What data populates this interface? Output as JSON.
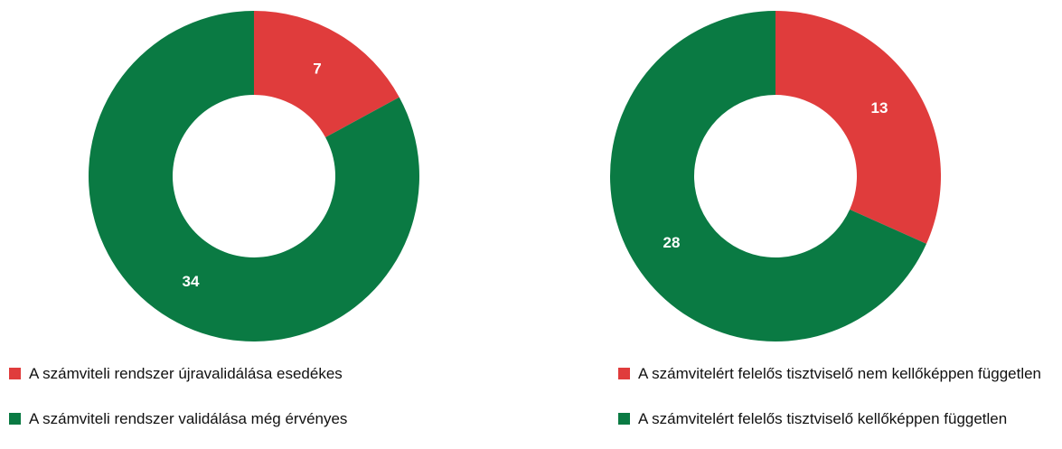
{
  "chart_data": [
    {
      "type": "donut",
      "categories": [
        "A számviteli rendszer újravalidálása esedékes",
        "A számviteli rendszer validálása még érvényes"
      ],
      "values": [
        7,
        34
      ],
      "colors": [
        "#e03c3c",
        "#0a7a43"
      ]
    },
    {
      "type": "donut",
      "categories": [
        "A számvitelért felelős tisztviselő nem kellőképpen független",
        "A számvitelért felelős tisztviselő kellőképpen független"
      ],
      "values": [
        13,
        28
      ],
      "colors": [
        "#e03c3c",
        "#0a7a43"
      ]
    }
  ]
}
